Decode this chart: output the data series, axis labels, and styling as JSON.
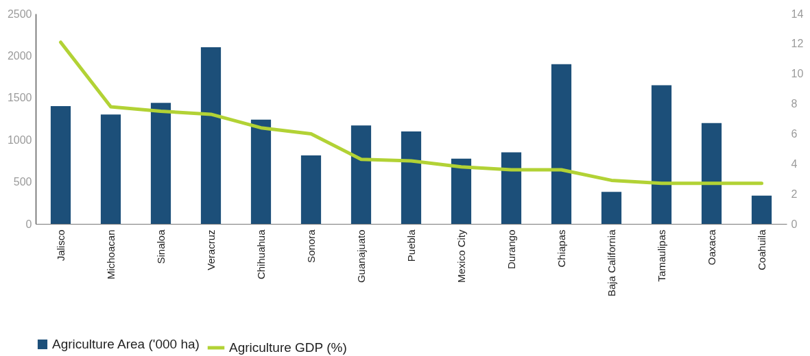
{
  "chart_data": {
    "type": "bar",
    "categories": [
      "Jalisco",
      "Michoacan",
      "Sinaloa",
      "Veracruz",
      "Chihuahua",
      "Sonora",
      "Guanajuato",
      "Puebla",
      "Mexico City",
      "Durango",
      "Chiapas",
      "Baja California",
      "Tamaulipas",
      "Oaxaca",
      "Coahuila"
    ],
    "series": [
      {
        "name": "Agriculture Area ('000 ha)",
        "color": "#1c4f79",
        "values": [
          1400,
          1300,
          1440,
          2100,
          1240,
          815,
          1170,
          1100,
          775,
          850,
          1900,
          380,
          1650,
          1200,
          335
        ]
      },
      {
        "name": "Agriculture GDP (%)",
        "type": "line",
        "axis": "y2",
        "color": "#b2d235",
        "values": [
          12.1,
          7.8,
          7.5,
          7.3,
          6.4,
          6.0,
          4.3,
          4.2,
          3.8,
          3.6,
          3.6,
          2.9,
          2.7,
          2.7,
          2.7
        ]
      }
    ],
    "ylim": [
      0,
      2500
    ],
    "yticks": [
      0,
      500,
      1000,
      1500,
      2000,
      2500
    ],
    "y2lim": [
      0,
      14
    ],
    "y2ticks": [
      0,
      2,
      4,
      6,
      8,
      10,
      12,
      14
    ],
    "grid": false,
    "legend": "bottom"
  }
}
